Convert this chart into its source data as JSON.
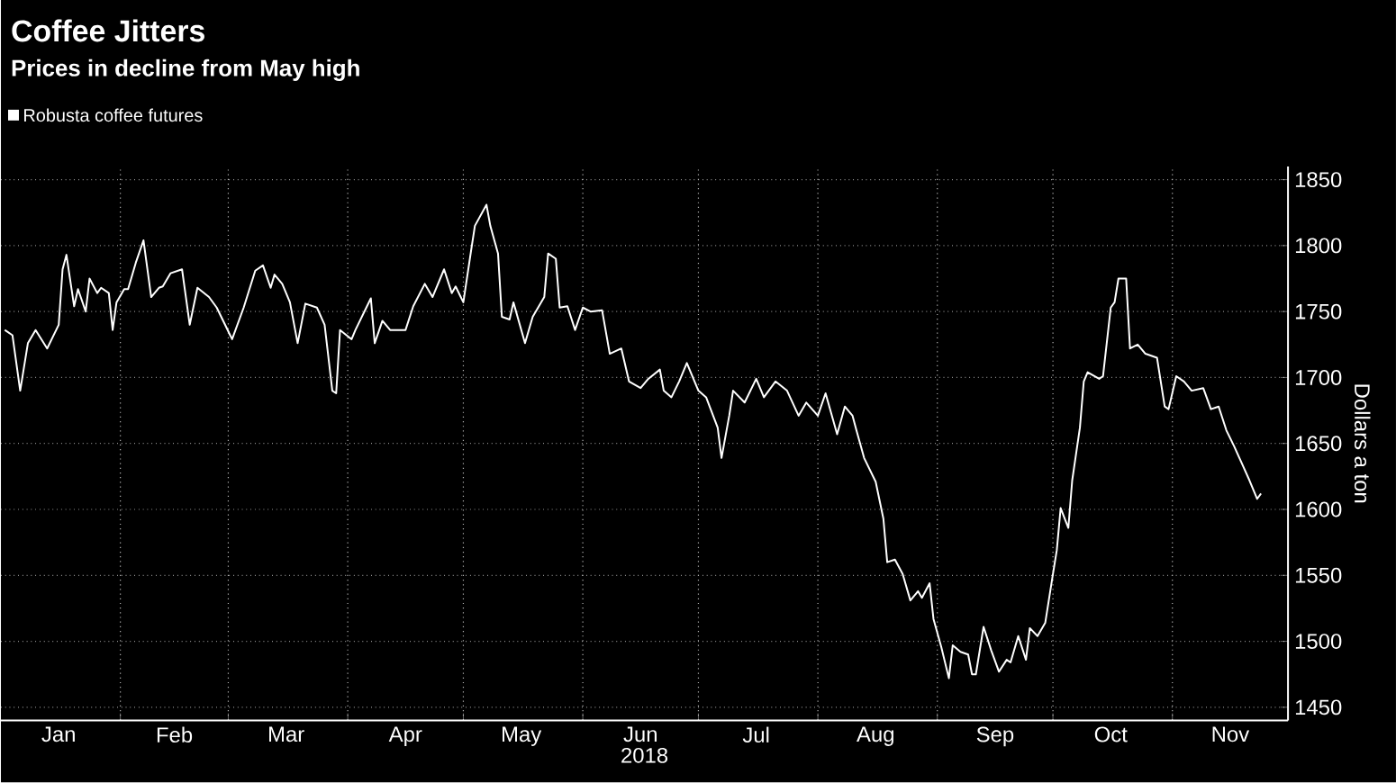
{
  "chart_data": {
    "type": "line",
    "title": "Coffee Jitters",
    "subtitle": "Prices in decline from May high",
    "xlabel": "2018",
    "ylabel": "Dollars a ton",
    "x": [
      "2018-01-02",
      "2018-01-04",
      "2018-01-06",
      "2018-01-08",
      "2018-01-10",
      "2018-01-13",
      "2018-01-16",
      "2018-01-17",
      "2018-01-18",
      "2018-01-20",
      "2018-01-21",
      "2018-01-23",
      "2018-01-24",
      "2018-01-26",
      "2018-01-27",
      "2018-01-29",
      "2018-01-30",
      "2018-01-31",
      "2018-02-02",
      "2018-02-03",
      "2018-02-05",
      "2018-02-07",
      "2018-02-09",
      "2018-02-11",
      "2018-02-12",
      "2018-02-14",
      "2018-02-17",
      "2018-02-19",
      "2018-02-21",
      "2018-02-24",
      "2018-02-26",
      "2018-03-02",
      "2018-03-05",
      "2018-03-08",
      "2018-03-10",
      "2018-03-12",
      "2018-03-13",
      "2018-03-15",
      "2018-03-17",
      "2018-03-19",
      "2018-03-21",
      "2018-03-24",
      "2018-03-26",
      "2018-03-28",
      "2018-03-29",
      "2018-03-30",
      "2018-04-02",
      "2018-04-03",
      "2018-04-06",
      "2018-04-07",
      "2018-04-08",
      "2018-04-10",
      "2018-04-12",
      "2018-04-16",
      "2018-04-18",
      "2018-04-21",
      "2018-04-23",
      "2018-04-26",
      "2018-04-28",
      "2018-04-29",
      "2018-05-01",
      "2018-05-03",
      "2018-05-04",
      "2018-05-07",
      "2018-05-08",
      "2018-05-10",
      "2018-05-11",
      "2018-05-13",
      "2018-05-14",
      "2018-05-17",
      "2018-05-19",
      "2018-05-22",
      "2018-05-23",
      "2018-05-25",
      "2018-05-26",
      "2018-05-28",
      "2018-05-30",
      "2018-06-01",
      "2018-06-03",
      "2018-06-06",
      "2018-06-08",
      "2018-06-11",
      "2018-06-13",
      "2018-06-16",
      "2018-06-18",
      "2018-06-21",
      "2018-06-22",
      "2018-06-24",
      "2018-06-26",
      "2018-06-28",
      "2018-06-29",
      "2018-07-01",
      "2018-07-03",
      "2018-07-06",
      "2018-07-07",
      "2018-07-09",
      "2018-07-10",
      "2018-07-13",
      "2018-07-16",
      "2018-07-18",
      "2018-07-21",
      "2018-07-24",
      "2018-07-27",
      "2018-07-29",
      "2018-08-01",
      "2018-08-03",
      "2018-08-06",
      "2018-08-08",
      "2018-08-10",
      "2018-08-11",
      "2018-08-13",
      "2018-08-16",
      "2018-08-18",
      "2018-08-19",
      "2018-08-21",
      "2018-08-23",
      "2018-08-25",
      "2018-08-27",
      "2018-08-28",
      "2018-08-30",
      "2018-08-31",
      "2018-09-02",
      "2018-09-04",
      "2018-09-05",
      "2018-09-07",
      "2018-09-09",
      "2018-09-10",
      "2018-09-11",
      "2018-09-13",
      "2018-09-15",
      "2018-09-17",
      "2018-09-19",
      "2018-09-20",
      "2018-09-22",
      "2018-09-24",
      "2018-09-25",
      "2018-09-27",
      "2018-09-29",
      "2018-10-01",
      "2018-10-02",
      "2018-10-03",
      "2018-10-05",
      "2018-10-06",
      "2018-10-08",
      "2018-10-09",
      "2018-10-10",
      "2018-10-13",
      "2018-10-14",
      "2018-10-16",
      "2018-10-17",
      "2018-10-18",
      "2018-10-20",
      "2018-10-21",
      "2018-10-23",
      "2018-10-25",
      "2018-10-28",
      "2018-10-30",
      "2018-10-31",
      "2018-11-02",
      "2018-11-04",
      "2018-11-06",
      "2018-11-09",
      "2018-11-11",
      "2018-11-13",
      "2018-11-15",
      "2018-11-17",
      "2018-11-19",
      "2018-11-21",
      "2018-11-23",
      "2018-11-24"
    ],
    "series": [
      {
        "name": "Robusta coffee futures",
        "color": "#ffffff",
        "values": [
          1736,
          1732,
          1690,
          1726,
          1736,
          1722,
          1740,
          1782,
          1793,
          1754,
          1767,
          1750,
          1775,
          1764,
          1768,
          1764,
          1736,
          1757,
          1767,
          1767,
          1787,
          1804,
          1761,
          1768,
          1769,
          1779,
          1782,
          1740,
          1768,
          1761,
          1753,
          1729,
          1753,
          1781,
          1785,
          1768,
          1778,
          1771,
          1757,
          1726,
          1756,
          1753,
          1740,
          1690,
          1688,
          1736,
          1729,
          1736,
          1754,
          1760,
          1726,
          1743,
          1736,
          1736,
          1754,
          1771,
          1761,
          1782,
          1764,
          1769,
          1757,
          1796,
          1815,
          1831,
          1815,
          1794,
          1746,
          1744,
          1757,
          1726,
          1746,
          1761,
          1794,
          1790,
          1753,
          1754,
          1736,
          1753,
          1750,
          1751,
          1718,
          1722,
          1697,
          1692,
          1699,
          1706,
          1690,
          1685,
          1697,
          1711,
          1704,
          1690,
          1685,
          1662,
          1639,
          1671,
          1690,
          1681,
          1699,
          1685,
          1697,
          1690,
          1671,
          1681,
          1671,
          1688,
          1657,
          1678,
          1671,
          1660,
          1639,
          1621,
          1593,
          1560,
          1562,
          1551,
          1531,
          1538,
          1533,
          1544,
          1517,
          1496,
          1472,
          1497,
          1492,
          1490,
          1475,
          1475,
          1511,
          1493,
          1477,
          1486,
          1484,
          1504,
          1486,
          1510,
          1504,
          1514,
          1551,
          1569,
          1601,
          1586,
          1622,
          1662,
          1697,
          1704,
          1699,
          1701,
          1753,
          1757,
          1775,
          1775,
          1722,
          1725,
          1718,
          1715,
          1678,
          1676,
          1701,
          1697,
          1690,
          1692,
          1676,
          1678,
          1660,
          1648,
          1635,
          1622,
          1608,
          1612
        ]
      }
    ],
    "xlim": [
      "2018-01-01",
      "2018-12-01"
    ],
    "xticks": [
      {
        "value": "2018-01-16",
        "label": "Jan"
      },
      {
        "value": "2018-02-01",
        "label": null
      },
      {
        "value": "2018-02-15",
        "label": "Feb"
      },
      {
        "value": "2018-03-01",
        "label": null
      },
      {
        "value": "2018-03-16",
        "label": "Mar"
      },
      {
        "value": "2018-04-01",
        "label": null
      },
      {
        "value": "2018-04-16",
        "label": "Apr"
      },
      {
        "value": "2018-05-01",
        "label": null
      },
      {
        "value": "2018-05-16",
        "label": "May"
      },
      {
        "value": "2018-06-01",
        "label": null
      },
      {
        "value": "2018-06-16",
        "label": "Jun"
      },
      {
        "value": "2018-07-01",
        "label": null
      },
      {
        "value": "2018-07-16",
        "label": "Jul"
      },
      {
        "value": "2018-08-01",
        "label": null
      },
      {
        "value": "2018-08-16",
        "label": "Aug"
      },
      {
        "value": "2018-09-01",
        "label": null
      },
      {
        "value": "2018-09-16",
        "label": "Sep"
      },
      {
        "value": "2018-10-01",
        "label": null
      },
      {
        "value": "2018-10-16",
        "label": "Oct"
      },
      {
        "value": "2018-11-01",
        "label": null
      },
      {
        "value": "2018-11-16",
        "label": "Nov"
      }
    ],
    "ylim": [
      1440,
      1860
    ],
    "yticks": [
      1450,
      1500,
      1550,
      1600,
      1650,
      1700,
      1750,
      1800,
      1850
    ],
    "grid": true,
    "legend": "top left",
    "line_style": "solid"
  }
}
